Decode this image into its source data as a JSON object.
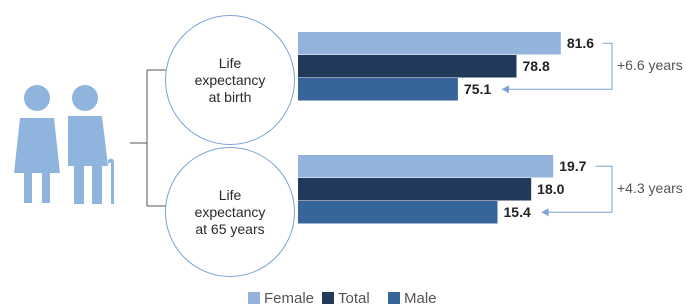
{
  "chart_data": {
    "type": "bar",
    "orientation": "horizontal",
    "categories": [
      "Life expectancy at birth",
      "Life expectancy at 65 years"
    ],
    "category_xlims": [
      [
        65,
        83
      ],
      [
        0,
        22
      ]
    ],
    "series": [
      {
        "name": "Female",
        "color": "#93b3dc",
        "values": [
          81.6,
          19.7
        ]
      },
      {
        "name": "Total",
        "color": "#213a5c",
        "values": [
          78.8,
          18.0
        ],
        "value_labels": [
          "78.8",
          "18.0"
        ]
      },
      {
        "name": "Male",
        "color": "#37659b",
        "values": [
          75.1,
          15.4
        ]
      }
    ],
    "annotations": [
      "+6.6 years",
      "+4.3 years"
    ]
  }
}
